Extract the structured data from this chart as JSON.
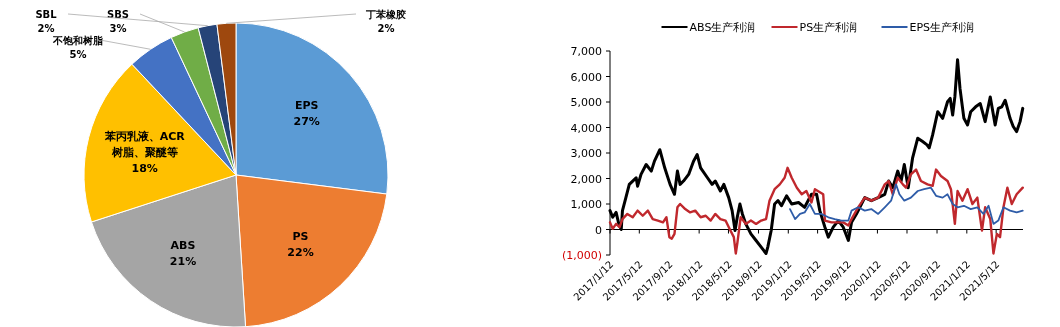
{
  "chart_data": [
    {
      "type": "pie",
      "categories": [
        "EPS",
        "PS",
        "ABS",
        "苯丙乳液、ACR树脂、聚醚等",
        "不饱和树脂",
        "SBS",
        "SBL",
        "丁苯橡胶"
      ],
      "values": [
        27,
        22,
        21,
        18,
        5,
        3,
        2,
        2
      ],
      "value_labels": [
        "27%",
        "22%",
        "21%",
        "18%",
        "5%",
        "3%",
        "2%",
        "2%"
      ],
      "colors": [
        "#5b9bd5",
        "#ed7d31",
        "#a5a5a5",
        "#ffc000",
        "#4472c4",
        "#70ad47",
        "#264478",
        "#9e480e"
      ],
      "data_labels": true
    },
    {
      "type": "line",
      "legend": "top",
      "xlim": [
        "2017-01-12",
        "2021-08-30"
      ],
      "xticks": [
        {
          "value": "2017-01-12",
          "label": "2017/1/12"
        },
        {
          "value": "2017-05-12",
          "label": "2017/5/12"
        },
        {
          "value": "2017-09-12",
          "label": "2017/9/12"
        },
        {
          "value": "2018-01-12",
          "label": "2018/1/12"
        },
        {
          "value": "2018-05-12",
          "label": "2018/5/12"
        },
        {
          "value": "2018-09-12",
          "label": "2018/9/12"
        },
        {
          "value": "2019-01-12",
          "label": "2019/1/12"
        },
        {
          "value": "2019-05-12",
          "label": "2019/5/12"
        },
        {
          "value": "2019-09-12",
          "label": "2019/9/12"
        },
        {
          "value": "2020-01-12",
          "label": "2020/1/12"
        },
        {
          "value": "2020-05-12",
          "label": "2020/5/12"
        },
        {
          "value": "2020-09-12",
          "label": "2020/9/12"
        },
        {
          "value": "2021-01-12",
          "label": "2021/1/12"
        },
        {
          "value": "2021-05-12",
          "label": "2021/5/12"
        }
      ],
      "ylim": [
        -1000,
        7000
      ],
      "yticks": [
        {
          "value": -1000,
          "label": "(1,000)"
        },
        0,
        {
          "value": 1000,
          "label": "1,000"
        },
        {
          "value": 2000,
          "label": "2,000"
        },
        {
          "value": 3000,
          "label": "3,000"
        },
        {
          "value": 4000,
          "label": "4,000"
        },
        {
          "value": 5000,
          "label": "5,000"
        },
        {
          "value": 6000,
          "label": "6,000"
        },
        {
          "value": 7000,
          "label": "7,000"
        }
      ],
      "series": [
        {
          "name": "ABS生产利润",
          "color": "#000000",
          "x": [
            "2017-01-12",
            "2017-01-23",
            "2017-02-06",
            "2017-02-17",
            "2017-02-27",
            "2017-03-04",
            "2017-03-18",
            "2017-04-01",
            "2017-04-15",
            "2017-04-29",
            "2017-05-05",
            "2017-05-19",
            "2017-06-09",
            "2017-06-30",
            "2017-07-13",
            "2017-08-04",
            "2017-08-24",
            "2017-09-15",
            "2017-10-03",
            "2017-10-15",
            "2017-10-26",
            "2017-11-09",
            "2017-11-30",
            "2017-12-20",
            "2018-01-04",
            "2018-01-18",
            "2018-02-15",
            "2018-03-06",
            "2018-03-19",
            "2018-04-09",
            "2018-04-23",
            "2018-05-13",
            "2018-05-27",
            "2018-06-08",
            "2018-06-17",
            "2018-06-28",
            "2018-07-08",
            "2018-07-22",
            "2018-08-12",
            "2018-09-02",
            "2018-09-23",
            "2018-10-13",
            "2018-10-20",
            "2018-11-03",
            "2018-11-17",
            "2018-12-01",
            "2018-12-15",
            "2019-01-05",
            "2019-01-26",
            "2019-02-23",
            "2019-03-20",
            "2019-04-17",
            "2019-05-08",
            "2019-05-21",
            "2019-06-11",
            "2019-06-25",
            "2019-07-15",
            "2019-08-05",
            "2019-08-25",
            "2019-09-15",
            "2019-09-28",
            "2019-10-18",
            "2019-11-01",
            "2019-11-21",
            "2019-12-18",
            "2020-01-15",
            "2020-02-11",
            "2020-02-27",
            "2020-03-15",
            "2020-04-04",
            "2020-04-18",
            "2020-05-01",
            "2020-05-17",
            "2020-06-04",
            "2020-06-25",
            "2020-07-15",
            "2020-08-02",
            "2020-08-11",
            "2020-08-25",
            "2020-09-15",
            "2020-10-05",
            "2020-10-25",
            "2020-11-05",
            "2020-11-15",
            "2020-11-24",
            "2020-12-05",
            "2020-12-15",
            "2020-12-31",
            "2021-01-15",
            "2021-01-28",
            "2021-02-17",
            "2021-03-08",
            "2021-03-28",
            "2021-04-18",
            "2021-05-08",
            "2021-05-21",
            "2021-06-04",
            "2021-06-18",
            "2021-07-08",
            "2021-07-21",
            "2021-08-04",
            "2021-08-18",
            "2021-08-29"
          ],
          "values": [
            740,
            480,
            670,
            220,
            0,
            740,
            1250,
            1770,
            1900,
            2030,
            1700,
            2160,
            2550,
            2290,
            2680,
            3130,
            2420,
            1770,
            1380,
            2290,
            1770,
            1900,
            2160,
            2680,
            2940,
            2420,
            2030,
            1770,
            1900,
            1510,
            1770,
            1250,
            740,
            -40,
            480,
            1000,
            610,
            220,
            -170,
            -430,
            -690,
            -940,
            -690,
            -40,
            1000,
            1130,
            930,
            1320,
            1000,
            1060,
            870,
            1380,
            1380,
            740,
            90,
            -300,
            90,
            350,
            90,
            -430,
            280,
            610,
            870,
            1250,
            1130,
            1250,
            1380,
            1900,
            1640,
            2290,
            1900,
            2550,
            1640,
            2810,
            3580,
            3450,
            3320,
            3200,
            3710,
            4620,
            4360,
            5010,
            5140,
            4490,
            5200,
            6660,
            5530,
            4360,
            4100,
            4620,
            4810,
            4940,
            4230,
            5200,
            4100,
            4750,
            4810,
            5070,
            4360,
            4040,
            3840,
            4230,
            4750
          ]
        },
        {
          "name": "PS生产利润",
          "color": "#c0282d",
          "x": [
            "2017-01-12",
            "2017-01-23",
            "2017-02-06",
            "2017-02-20",
            "2017-03-04",
            "2017-03-24",
            "2017-04-15",
            "2017-05-05",
            "2017-05-26",
            "2017-06-16",
            "2017-07-06",
            "2017-07-27",
            "2017-08-17",
            "2017-08-31",
            "2017-09-12",
            "2017-09-22",
            "2017-10-03",
            "2017-10-15",
            "2017-10-26",
            "2017-11-16",
            "2017-12-06",
            "2017-12-27",
            "2018-01-18",
            "2018-02-08",
            "2018-02-28",
            "2018-03-19",
            "2018-04-09",
            "2018-04-30",
            "2018-05-20",
            "2018-06-03",
            "2018-06-11",
            "2018-06-17",
            "2018-07-01",
            "2018-07-22",
            "2018-08-12",
            "2018-09-02",
            "2018-09-23",
            "2018-10-13",
            "2018-10-27",
            "2018-11-17",
            "2018-12-08",
            "2018-12-28",
            "2019-01-09",
            "2019-01-26",
            "2019-02-16",
            "2019-03-08",
            "2019-03-27",
            "2019-04-17",
            "2019-05-01",
            "2019-06-04",
            "2019-06-11",
            "2019-07-08",
            "2019-08-05",
            "2019-08-25",
            "2019-09-15",
            "2019-09-28",
            "2019-10-25",
            "2019-11-21",
            "2019-12-18",
            "2020-01-15",
            "2020-02-11",
            "2020-02-27",
            "2020-03-15",
            "2020-04-04",
            "2020-04-25",
            "2020-05-08",
            "2020-05-28",
            "2020-06-18",
            "2020-07-08",
            "2020-08-04",
            "2020-08-25",
            "2020-09-08",
            "2020-09-28",
            "2020-10-25",
            "2020-11-08",
            "2020-11-24",
            "2020-12-05",
            "2020-12-25",
            "2021-01-15",
            "2021-02-04",
            "2021-02-24",
            "2021-03-15",
            "2021-03-28",
            "2021-04-18",
            "2021-05-01",
            "2021-05-15",
            "2021-05-28",
            "2021-06-11",
            "2021-06-27",
            "2021-07-15",
            "2021-08-04",
            "2021-08-29"
          ],
          "values": [
            280,
            30,
            220,
            90,
            410,
            610,
            480,
            740,
            540,
            740,
            410,
            350,
            280,
            480,
            -300,
            -360,
            -170,
            870,
            1000,
            800,
            670,
            740,
            480,
            540,
            350,
            610,
            410,
            350,
            -40,
            -300,
            -940,
            -560,
            480,
            220,
            350,
            220,
            350,
            410,
            1130,
            1580,
            1770,
            2030,
            2420,
            2030,
            1640,
            1380,
            1510,
            1060,
            1580,
            1380,
            350,
            280,
            280,
            280,
            160,
            410,
            870,
            1250,
            1130,
            1250,
            1770,
            1900,
            1380,
            2030,
            1770,
            1640,
            2160,
            2350,
            1900,
            1770,
            1710,
            2350,
            2100,
            1900,
            1580,
            220,
            1510,
            1130,
            1580,
            1000,
            1250,
            -40,
            870,
            410,
            -940,
            -170,
            -300,
            870,
            1640,
            1000,
            1380,
            1640
          ]
        },
        {
          "name": "EPS生产利润",
          "color": "#2e5ca8",
          "x": [
            "2019-01-19",
            "2019-02-09",
            "2019-03-01",
            "2019-03-20",
            "2019-04-10",
            "2019-05-01",
            "2019-05-28",
            "2019-06-25",
            "2019-07-21",
            "2019-08-18",
            "2019-09-15",
            "2019-09-28",
            "2019-10-25",
            "2019-11-21",
            "2019-12-18",
            "2020-01-15",
            "2020-02-11",
            "2020-03-08",
            "2020-03-28",
            "2020-04-11",
            "2020-05-01",
            "2020-05-28",
            "2020-06-25",
            "2020-07-21",
            "2020-08-18",
            "2020-09-08",
            "2020-10-05",
            "2020-10-25",
            "2020-11-15",
            "2020-12-05",
            "2020-12-31",
            "2021-01-28",
            "2021-02-24",
            "2021-03-21",
            "2021-04-11",
            "2021-05-01",
            "2021-05-21",
            "2021-06-11",
            "2021-07-08",
            "2021-08-04",
            "2021-08-29"
          ],
          "values": [
            800,
            410,
            610,
            670,
            1000,
            610,
            610,
            480,
            410,
            350,
            350,
            740,
            870,
            740,
            800,
            610,
            870,
            1130,
            1770,
            1380,
            1130,
            1250,
            1510,
            1580,
            1640,
            1320,
            1250,
            1380,
            1000,
            870,
            930,
            800,
            870,
            610,
            930,
            220,
            350,
            870,
            740,
            670,
            740
          ]
        }
      ]
    }
  ]
}
